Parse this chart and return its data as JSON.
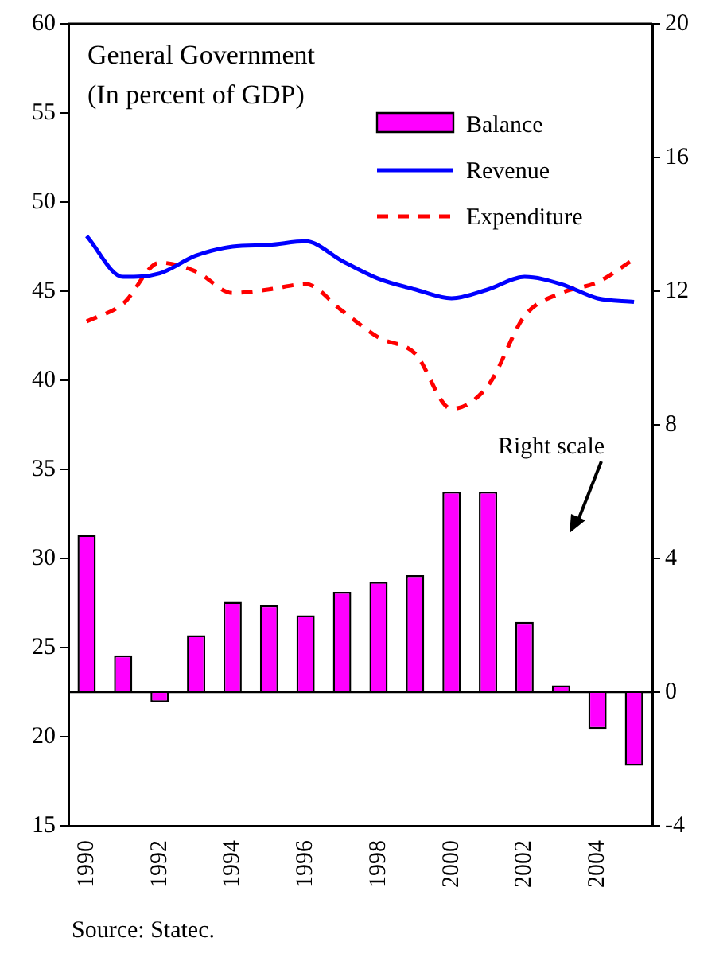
{
  "chart_data": {
    "type": "bar",
    "title": "General Government",
    "subtitle": "(In percent of GDP)",
    "categories": [
      "1990",
      null,
      "1992",
      null,
      "1994",
      null,
      "1996",
      null,
      "1998",
      null,
      "2000",
      null,
      "2002",
      null,
      "2004",
      null
    ],
    "series": [
      {
        "name": "Balance",
        "axis": "y2",
        "color": "#ff00ff",
        "values": [
          4.7,
          1.1,
          -0.3,
          1.7,
          2.7,
          2.6,
          2.3,
          3.0,
          3.3,
          3.5,
          6.0,
          6.0,
          2.1,
          0.2,
          -1.1,
          -2.2
        ]
      },
      {
        "name": "Revenue",
        "type": "line",
        "color": "#0000ff",
        "line_style": "solid",
        "values": [
          48.1,
          45.8,
          46.0,
          47.0,
          47.5,
          47.6,
          47.8,
          46.7,
          45.7,
          45.1,
          44.6,
          45.1,
          45.8,
          45.4,
          44.6,
          44.4
        ]
      },
      {
        "name": "Expenditure",
        "type": "line",
        "color": "#ff0000",
        "line_style": "dashed",
        "values": [
          43.3,
          44.3,
          46.6,
          46.1,
          44.9,
          45.1,
          45.4,
          43.9,
          42.4,
          41.5,
          38.4,
          39.7,
          43.6,
          44.9,
          45.5,
          46.8
        ]
      }
    ],
    "ylim": [
      15,
      60
    ],
    "yticks": [
      15,
      20,
      25,
      30,
      35,
      40,
      45,
      50,
      55,
      60
    ],
    "y2lim": [
      -4,
      20
    ],
    "y2ticks": [
      -4,
      0,
      4,
      8,
      12,
      16,
      20
    ],
    "legend": "top right",
    "marker": "none",
    "annotations": [
      "Right scale",
      "Source: Statec."
    ]
  }
}
